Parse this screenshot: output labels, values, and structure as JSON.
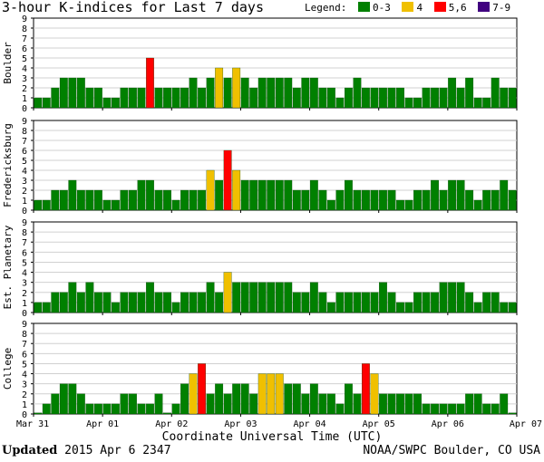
{
  "chart_data": {
    "type": "bar",
    "title": "3-hour K-indices for Last 7 days",
    "xlabel": "Coordinate Universal Time (UTC)",
    "ylim": [
      0,
      9
    ],
    "yticks": [
      "0",
      "1",
      "2",
      "3",
      "4",
      "5",
      "6",
      "7",
      "8",
      "9"
    ],
    "xticks": [
      "Mar 31",
      "Apr 01",
      "Apr 02",
      "Apr 03",
      "Apr 04",
      "Apr 05",
      "Apr 06",
      "Apr 07"
    ],
    "legend": {
      "title": "Legend:",
      "entries": [
        {
          "label": "0-3",
          "color": "#008000"
        },
        {
          "label": "4",
          "color": "#f0c000"
        },
        {
          "label": "5,6",
          "color": "#ff0000"
        },
        {
          "label": "7-9",
          "color": "#400080"
        }
      ]
    },
    "panels": [
      {
        "name": "Boulder",
        "values": [
          1,
          1,
          2,
          3,
          3,
          3,
          2,
          2,
          1,
          1,
          2,
          2,
          2,
          5,
          2,
          2,
          2,
          2,
          3,
          2,
          3,
          4,
          3,
          4,
          3,
          2,
          3,
          3,
          3,
          3,
          2,
          3,
          3,
          2,
          2,
          1,
          2,
          3,
          2,
          2,
          2,
          2,
          2,
          1,
          1,
          2,
          2,
          2,
          3,
          2,
          3,
          1,
          1,
          3,
          2,
          2,
          0
        ]
      },
      {
        "name": "Fredericksburg",
        "values": [
          1,
          1,
          2,
          2,
          3,
          2,
          2,
          2,
          1,
          1,
          2,
          2,
          3,
          3,
          2,
          2,
          1,
          2,
          2,
          2,
          4,
          3,
          6,
          4,
          3,
          3,
          3,
          3,
          3,
          3,
          2,
          2,
          3,
          2,
          1,
          2,
          3,
          2,
          2,
          2,
          2,
          2,
          1,
          1,
          2,
          2,
          3,
          2,
          3,
          3,
          2,
          1,
          2,
          2,
          3,
          2,
          0
        ]
      },
      {
        "name": "Est. Planetary",
        "values": [
          1,
          1,
          2,
          2,
          3,
          2,
          3,
          2,
          2,
          1,
          2,
          2,
          2,
          3,
          2,
          2,
          1,
          2,
          2,
          2,
          3,
          2,
          4,
          3,
          3,
          3,
          3,
          3,
          3,
          3,
          2,
          2,
          3,
          2,
          1,
          2,
          2,
          2,
          2,
          2,
          3,
          2,
          1,
          1,
          2,
          2,
          2,
          3,
          3,
          3,
          2,
          1,
          2,
          2,
          1,
          1,
          0
        ]
      },
      {
        "name": "College",
        "values": [
          0,
          1,
          2,
          3,
          3,
          2,
          1,
          1,
          1,
          1,
          2,
          2,
          1,
          1,
          2,
          0,
          1,
          3,
          4,
          5,
          2,
          3,
          2,
          3,
          3,
          2,
          4,
          4,
          4,
          3,
          3,
          2,
          3,
          2,
          2,
          1,
          3,
          2,
          5,
          4,
          2,
          2,
          2,
          2,
          2,
          1,
          1,
          1,
          1,
          1,
          2,
          2,
          1,
          1,
          2,
          0,
          1,
          0
        ]
      }
    ]
  },
  "footer": {
    "updated_label": "Updated",
    "updated_value": "2015 Apr  6 2347",
    "source": "NOAA/SWPC Boulder, CO USA"
  }
}
